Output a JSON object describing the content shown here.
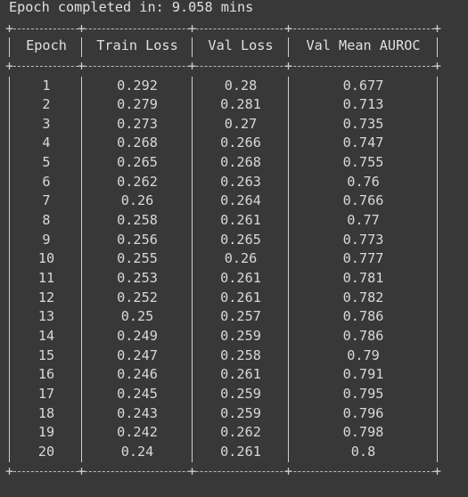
{
  "header": {
    "status_text": "Epoch completed in: 9.058 mins"
  },
  "table": {
    "columns": [
      "Epoch",
      "Train Loss",
      "Val Loss",
      "Val Mean AUROC"
    ],
    "rows": [
      [
        "1",
        "0.292",
        "0.28",
        "0.677"
      ],
      [
        "2",
        "0.279",
        "0.281",
        "0.713"
      ],
      [
        "3",
        "0.273",
        "0.27",
        "0.735"
      ],
      [
        "4",
        "0.268",
        "0.266",
        "0.747"
      ],
      [
        "5",
        "0.265",
        "0.268",
        "0.755"
      ],
      [
        "6",
        "0.262",
        "0.263",
        "0.76"
      ],
      [
        "7",
        "0.26",
        "0.264",
        "0.766"
      ],
      [
        "8",
        "0.258",
        "0.261",
        "0.77"
      ],
      [
        "9",
        "0.256",
        "0.265",
        "0.773"
      ],
      [
        "10",
        "0.255",
        "0.26",
        "0.777"
      ],
      [
        "11",
        "0.253",
        "0.261",
        "0.781"
      ],
      [
        "12",
        "0.252",
        "0.261",
        "0.782"
      ],
      [
        "13",
        "0.25",
        "0.257",
        "0.786"
      ],
      [
        "14",
        "0.249",
        "0.259",
        "0.786"
      ],
      [
        "15",
        "0.247",
        "0.258",
        "0.79"
      ],
      [
        "16",
        "0.246",
        "0.261",
        "0.791"
      ],
      [
        "17",
        "0.245",
        "0.259",
        "0.795"
      ],
      [
        "18",
        "0.243",
        "0.259",
        "0.796"
      ],
      [
        "19",
        "0.242",
        "0.262",
        "0.798"
      ],
      [
        "20",
        "0.24",
        "0.261",
        "0.8"
      ]
    ]
  },
  "colors": {
    "background": "#383838",
    "text": "#d4d4d4",
    "border": "#cfcfcf"
  }
}
